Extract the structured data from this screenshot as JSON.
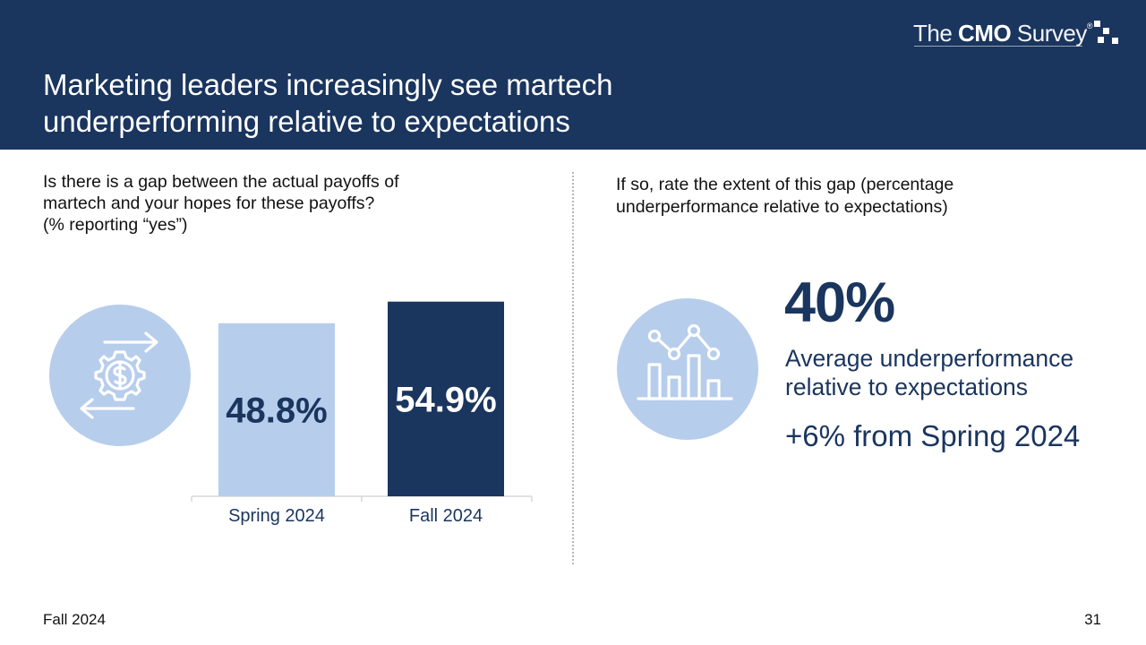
{
  "header": {
    "title_lines": [
      "Marketing leaders increasingly see martech",
      "underperforming relative to expectations"
    ],
    "logo": {
      "prefix": "The ",
      "brand": "CMO",
      "suffix": " Survey",
      "reg": "®"
    }
  },
  "left_panel": {
    "question_lines": [
      "Is there is a gap between the actual payoffs of",
      "martech and your hopes for these payoffs?",
      "(% reporting “yes”)"
    ],
    "icon": "gear-dollar-arrows-icon"
  },
  "chart_data": {
    "type": "bar",
    "categories": [
      "Spring 2024",
      "Fall 2024"
    ],
    "values": [
      48.8,
      54.9
    ],
    "value_labels": [
      "48.8%",
      "54.9%"
    ],
    "ylim": [
      0,
      60
    ],
    "bar_colors": [
      "#b7cdec",
      "#1a355e"
    ],
    "label_colors": [
      "#1a355e",
      "#ffffff"
    ],
    "title": "",
    "xlabel": "",
    "ylabel": ""
  },
  "right_panel": {
    "question_lines": [
      "If so, rate the extent of this gap (percentage",
      "underperformance relative to expectations)"
    ],
    "icon": "analytics-chart-icon",
    "big_stat": "40%",
    "description_lines": [
      "Average underperformance",
      "relative to expectations"
    ],
    "change": "+6% from Spring 2024"
  },
  "footer": {
    "edition": "Fall 2024",
    "page_number": "31"
  },
  "colors": {
    "navy": "#1a355e",
    "light_blue": "#b7cdec",
    "white": "#ffffff"
  }
}
